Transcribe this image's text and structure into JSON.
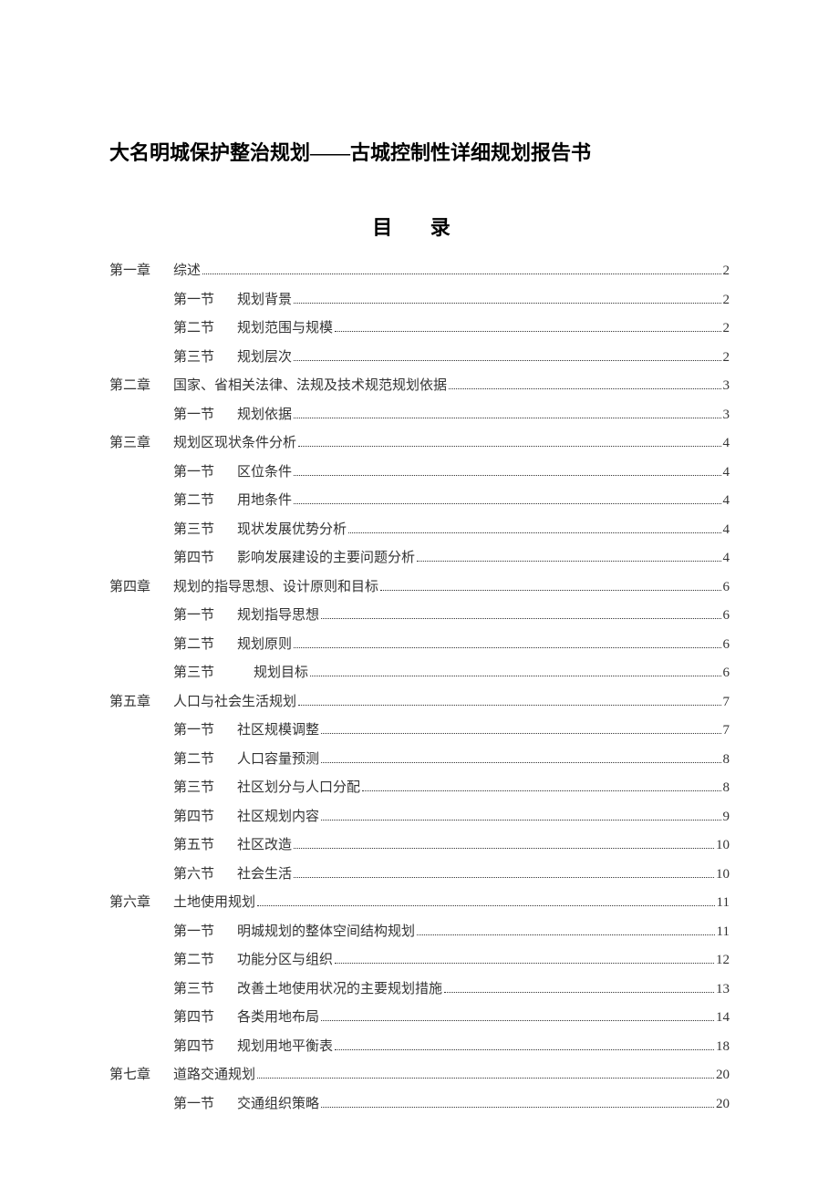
{
  "docTitle": "大名明城保护整治规划——古城控制性详细规划报告书",
  "tocHeading": "目 录",
  "entries": [
    {
      "type": "chapter",
      "chapter": "第一章",
      "title": "综述",
      "page": "2"
    },
    {
      "type": "section",
      "section": "第一节",
      "title": "规划背景",
      "page": "2"
    },
    {
      "type": "section",
      "section": "第二节",
      "title": "规划范围与规模",
      "page": "2"
    },
    {
      "type": "section",
      "section": "第三节",
      "title": "规划层次",
      "page": "2"
    },
    {
      "type": "chapter",
      "chapter": "第二章",
      "title": "国家、省相关法律、法规及技术规范规划依据",
      "page": "3"
    },
    {
      "type": "section",
      "section": "第一节",
      "title": "规划依据",
      "page": "3"
    },
    {
      "type": "chapter",
      "chapter": "第三章",
      "title": "规划区现状条件分析",
      "page": "4"
    },
    {
      "type": "section",
      "section": "第一节",
      "title": "区位条件",
      "page": "4"
    },
    {
      "type": "section",
      "section": "第二节",
      "title": "用地条件",
      "page": "4"
    },
    {
      "type": "section",
      "section": "第三节",
      "title": "现状发展优势分析",
      "page": "4"
    },
    {
      "type": "section",
      "section": "第四节",
      "title": "影响发展建设的主要问题分析",
      "page": "4"
    },
    {
      "type": "chapter",
      "chapter": "第四章",
      "title": "规划的指导思想、设计原则和目标",
      "page": "6"
    },
    {
      "type": "section",
      "section": "第一节",
      "title": "规划指导思想",
      "page": "6"
    },
    {
      "type": "section",
      "section": "第二节",
      "title": "规划原则",
      "page": "6"
    },
    {
      "type": "section",
      "section": "第三节",
      "title": "规划目标",
      "page": "6",
      "extraPad": true
    },
    {
      "type": "chapter",
      "chapter": "第五章",
      "title": "人口与社会生活规划",
      "page": "7"
    },
    {
      "type": "section",
      "section": "第一节",
      "title": "社区规模调整",
      "page": "7"
    },
    {
      "type": "section",
      "section": "第二节",
      "title": "人口容量预测",
      "page": "8"
    },
    {
      "type": "section",
      "section": "第三节",
      "title": "社区划分与人口分配",
      "page": "8"
    },
    {
      "type": "section",
      "section": "第四节",
      "title": "社区规划内容",
      "page": "9"
    },
    {
      "type": "section",
      "section": "第五节",
      "title": "社区改造",
      "page": "10"
    },
    {
      "type": "section",
      "section": "第六节",
      "title": "社会生活",
      "page": "10"
    },
    {
      "type": "chapter",
      "chapter": "第六章",
      "title": "土地使用规划",
      "page": "11"
    },
    {
      "type": "section",
      "section": "第一节",
      "title": "明城规划的整体空间结构规划",
      "page": "11"
    },
    {
      "type": "section",
      "section": "第二节",
      "title": "功能分区与组织",
      "page": "12"
    },
    {
      "type": "section",
      "section": "第三节",
      "title": "改善土地使用状况的主要规划措施",
      "page": "13"
    },
    {
      "type": "section",
      "section": "第四节",
      "title": "各类用地布局",
      "page": "14"
    },
    {
      "type": "section",
      "section": "第四节",
      "title": "规划用地平衡表",
      "page": "18"
    },
    {
      "type": "chapter",
      "chapter": "第七章",
      "title": "道路交通规划",
      "page": "20"
    },
    {
      "type": "section",
      "section": "第一节",
      "title": "交通组织策略",
      "page": "20"
    }
  ]
}
